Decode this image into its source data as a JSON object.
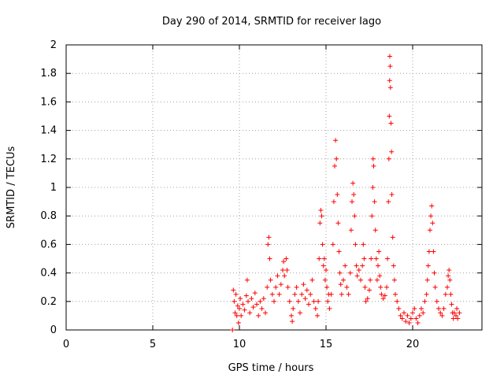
{
  "chart_data": {
    "type": "scatter",
    "title": "Day 290 of 2014, SRMTID for receiver Iago",
    "xlabel": "GPS time / hours",
    "ylabel": "SRMTID / TECUs",
    "xlim": [
      0,
      24
    ],
    "ylim": [
      0,
      2
    ],
    "x_ticks": [
      0,
      5,
      10,
      15,
      20
    ],
    "x_tick_labels": [
      "0",
      "5",
      "10",
      "15",
      "20"
    ],
    "y_ticks": [
      0,
      0.2,
      0.4,
      0.6,
      0.8,
      1,
      1.2,
      1.4,
      1.6,
      1.8,
      2
    ],
    "y_tick_labels": [
      "0",
      "0.2",
      "0.4",
      "0.6",
      "0.8",
      "1",
      "1.2",
      "1.4",
      "1.6",
      "1.8",
      "2"
    ],
    "grid": true,
    "marker": "+",
    "color": "#ff0000",
    "series": [
      {
        "name": "SRMTID",
        "points": [
          [
            9.6,
            0.0
          ],
          [
            9.65,
            0.28
          ],
          [
            9.7,
            0.2
          ],
          [
            9.75,
            0.12
          ],
          [
            9.8,
            0.25
          ],
          [
            9.85,
            0.1
          ],
          [
            9.9,
            0.17
          ],
          [
            9.95,
            0.05
          ],
          [
            10.0,
            0.15
          ],
          [
            10.05,
            0.22
          ],
          [
            10.1,
            0.1
          ],
          [
            10.2,
            0.18
          ],
          [
            10.3,
            0.14
          ],
          [
            10.4,
            0.24
          ],
          [
            10.45,
            0.35
          ],
          [
            10.5,
            0.2
          ],
          [
            10.6,
            0.12
          ],
          [
            10.7,
            0.22
          ],
          [
            10.8,
            0.16
          ],
          [
            10.9,
            0.26
          ],
          [
            11.0,
            0.18
          ],
          [
            11.1,
            0.1
          ],
          [
            11.2,
            0.2
          ],
          [
            11.3,
            0.15
          ],
          [
            11.4,
            0.22
          ],
          [
            11.5,
            0.12
          ],
          [
            11.6,
            0.3
          ],
          [
            11.65,
            0.6
          ],
          [
            11.7,
            0.65
          ],
          [
            11.75,
            0.5
          ],
          [
            11.8,
            0.35
          ],
          [
            11.9,
            0.25
          ],
          [
            12.0,
            0.2
          ],
          [
            12.1,
            0.3
          ],
          [
            12.2,
            0.38
          ],
          [
            12.3,
            0.25
          ],
          [
            12.4,
            0.32
          ],
          [
            12.5,
            0.42
          ],
          [
            12.55,
            0.48
          ],
          [
            12.6,
            0.38
          ],
          [
            12.7,
            0.5
          ],
          [
            12.75,
            0.42
          ],
          [
            12.8,
            0.3
          ],
          [
            12.9,
            0.2
          ],
          [
            13.0,
            0.1
          ],
          [
            13.05,
            0.06
          ],
          [
            13.1,
            0.15
          ],
          [
            13.2,
            0.25
          ],
          [
            13.3,
            0.3
          ],
          [
            13.4,
            0.2
          ],
          [
            13.5,
            0.12
          ],
          [
            13.6,
            0.25
          ],
          [
            13.7,
            0.32
          ],
          [
            13.8,
            0.22
          ],
          [
            13.9,
            0.28
          ],
          [
            14.0,
            0.18
          ],
          [
            14.1,
            0.25
          ],
          [
            14.2,
            0.35
          ],
          [
            14.3,
            0.2
          ],
          [
            14.4,
            0.15
          ],
          [
            14.5,
            0.1
          ],
          [
            14.55,
            0.2
          ],
          [
            14.6,
            0.5
          ],
          [
            14.65,
            0.75
          ],
          [
            14.7,
            0.84
          ],
          [
            14.75,
            0.8
          ],
          [
            14.8,
            0.6
          ],
          [
            14.85,
            0.45
          ],
          [
            14.9,
            0.5
          ],
          [
            14.95,
            0.35
          ],
          [
            15.0,
            0.42
          ],
          [
            15.05,
            0.3
          ],
          [
            15.1,
            0.2
          ],
          [
            15.15,
            0.25
          ],
          [
            15.2,
            0.15
          ],
          [
            15.3,
            0.25
          ],
          [
            15.4,
            0.6
          ],
          [
            15.45,
            0.9
          ],
          [
            15.5,
            1.15
          ],
          [
            15.55,
            1.33
          ],
          [
            15.6,
            1.2
          ],
          [
            15.65,
            0.95
          ],
          [
            15.7,
            0.75
          ],
          [
            15.75,
            0.55
          ],
          [
            15.8,
            0.4
          ],
          [
            15.85,
            0.32
          ],
          [
            15.9,
            0.25
          ],
          [
            16.0,
            0.35
          ],
          [
            16.1,
            0.45
          ],
          [
            16.2,
            0.3
          ],
          [
            16.3,
            0.25
          ],
          [
            16.4,
            0.4
          ],
          [
            16.45,
            0.7
          ],
          [
            16.5,
            0.9
          ],
          [
            16.55,
            1.03
          ],
          [
            16.6,
            0.95
          ],
          [
            16.65,
            0.8
          ],
          [
            16.7,
            0.6
          ],
          [
            16.75,
            0.45
          ],
          [
            16.8,
            0.38
          ],
          [
            16.9,
            0.42
          ],
          [
            17.0,
            0.35
          ],
          [
            17.1,
            0.45
          ],
          [
            17.15,
            0.6
          ],
          [
            17.2,
            0.5
          ],
          [
            17.25,
            0.3
          ],
          [
            17.3,
            0.2
          ],
          [
            17.4,
            0.22
          ],
          [
            17.5,
            0.28
          ],
          [
            17.55,
            0.35
          ],
          [
            17.6,
            0.5
          ],
          [
            17.65,
            0.8
          ],
          [
            17.7,
            1.0
          ],
          [
            17.72,
            1.2
          ],
          [
            17.75,
            1.15
          ],
          [
            17.8,
            0.9
          ],
          [
            17.85,
            0.7
          ],
          [
            17.9,
            0.5
          ],
          [
            17.95,
            0.35
          ],
          [
            18.0,
            0.45
          ],
          [
            18.05,
            0.55
          ],
          [
            18.1,
            0.38
          ],
          [
            18.15,
            0.3
          ],
          [
            18.2,
            0.25
          ],
          [
            18.3,
            0.22
          ],
          [
            18.4,
            0.24
          ],
          [
            18.5,
            0.3
          ],
          [
            18.55,
            0.5
          ],
          [
            18.6,
            0.9
          ],
          [
            18.63,
            1.2
          ],
          [
            18.65,
            1.5
          ],
          [
            18.67,
            1.75
          ],
          [
            18.68,
            1.92
          ],
          [
            18.7,
            1.85
          ],
          [
            18.72,
            1.7
          ],
          [
            18.75,
            1.45
          ],
          [
            18.78,
            1.25
          ],
          [
            18.8,
            0.95
          ],
          [
            18.85,
            0.65
          ],
          [
            18.9,
            0.45
          ],
          [
            18.95,
            0.35
          ],
          [
            19.0,
            0.25
          ],
          [
            19.1,
            0.2
          ],
          [
            19.2,
            0.15
          ],
          [
            19.3,
            0.1
          ],
          [
            19.4,
            0.08
          ],
          [
            19.5,
            0.12
          ],
          [
            19.6,
            0.06
          ],
          [
            19.7,
            0.1
          ],
          [
            19.8,
            0.05
          ],
          [
            19.9,
            0.08
          ],
          [
            20.0,
            0.12
          ],
          [
            20.1,
            0.15
          ],
          [
            20.2,
            0.08
          ],
          [
            20.3,
            0.05
          ],
          [
            20.4,
            0.1
          ],
          [
            20.5,
            0.15
          ],
          [
            20.6,
            0.12
          ],
          [
            20.7,
            0.2
          ],
          [
            20.8,
            0.25
          ],
          [
            20.85,
            0.35
          ],
          [
            20.9,
            0.45
          ],
          [
            20.95,
            0.55
          ],
          [
            21.0,
            0.7
          ],
          [
            21.05,
            0.8
          ],
          [
            21.1,
            0.87
          ],
          [
            21.15,
            0.75
          ],
          [
            21.2,
            0.55
          ],
          [
            21.25,
            0.4
          ],
          [
            21.3,
            0.3
          ],
          [
            21.4,
            0.2
          ],
          [
            21.5,
            0.15
          ],
          [
            21.6,
            0.12
          ],
          [
            21.7,
            0.1
          ],
          [
            21.8,
            0.15
          ],
          [
            21.9,
            0.25
          ],
          [
            22.0,
            0.3
          ],
          [
            22.05,
            0.38
          ],
          [
            22.1,
            0.42
          ],
          [
            22.15,
            0.35
          ],
          [
            22.2,
            0.25
          ],
          [
            22.25,
            0.18
          ],
          [
            22.3,
            0.12
          ],
          [
            22.35,
            0.08
          ],
          [
            22.4,
            0.12
          ],
          [
            22.5,
            0.1
          ],
          [
            22.55,
            0.15
          ],
          [
            22.6,
            0.08
          ],
          [
            22.7,
            0.12
          ]
        ]
      }
    ]
  }
}
